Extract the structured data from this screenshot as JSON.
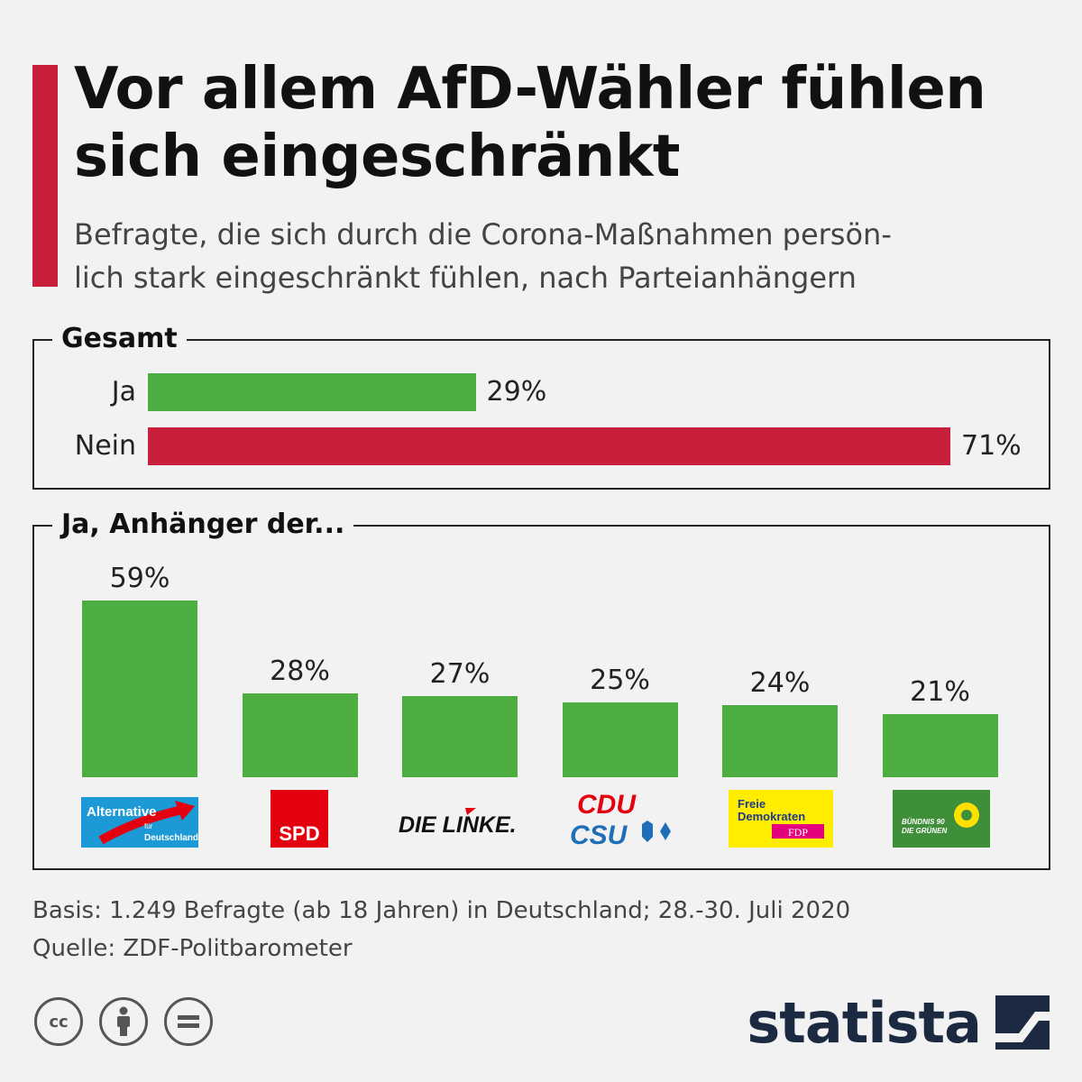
{
  "header": {
    "title_line1": "Vor allem AfD-Wähler fühlen",
    "title_line2": "sich eingeschränkt",
    "subtitle_line1": "Befragte, die sich durch die Corona-Maßnahmen persön-",
    "subtitle_line2": "lich stark eingeschränkt fühlen, nach Parteianhängern"
  },
  "colors": {
    "accent": "#c8203c",
    "yes_green": "#4cae41",
    "no_red": "#c8203c"
  },
  "chart_data": [
    {
      "type": "bar",
      "orientation": "horizontal",
      "title": "Gesamt",
      "categories": [
        "Ja",
        "Nein"
      ],
      "values": [
        29,
        71
      ],
      "value_labels": [
        "29%",
        "71%"
      ],
      "unit": "%",
      "xlim": [
        0,
        71
      ],
      "colors": [
        "#4cae41",
        "#c8203c"
      ]
    },
    {
      "type": "bar",
      "orientation": "vertical",
      "title": "Ja, Anhänger der...",
      "categories": [
        "AfD",
        "SPD",
        "Die Linke",
        "CDU/CSU",
        "FDP",
        "Grüne"
      ],
      "values": [
        59,
        28,
        27,
        25,
        24,
        21
      ],
      "value_labels": [
        "59%",
        "28%",
        "27%",
        "25%",
        "24%",
        "21%"
      ],
      "unit": "%",
      "ylim": [
        0,
        59
      ],
      "color": "#4cae41"
    }
  ],
  "logos": {
    "afd": {
      "line1": "Alternative",
      "line2": "für",
      "line3": "Deutschland",
      "icon": "afd-logo"
    },
    "spd": {
      "text": "SPD",
      "icon": "spd-logo"
    },
    "linke": {
      "text": "DIE LINKE.",
      "icon": "linke-logo"
    },
    "cdu": {
      "line1": "CDU",
      "line2": "CSU",
      "icon": "cdu-csu-logo"
    },
    "fdp": {
      "line1": "Freie",
      "line2": "Demokraten",
      "line3": "FDP",
      "icon": "fdp-logo"
    },
    "gruene": {
      "line1": "BÜNDNIS 90",
      "line2": "DIE GRÜNEN",
      "icon": "gruene-logo"
    }
  },
  "footer": {
    "basis": "Basis: 1.249 Befragte (ab 18 Jahren) in Deutschland; 28.-30. Juli 2020",
    "source": "Quelle: ZDF-Politbarometer",
    "cc_icons": [
      "cc-icon",
      "by-icon",
      "nd-icon"
    ],
    "brand": "statista"
  }
}
